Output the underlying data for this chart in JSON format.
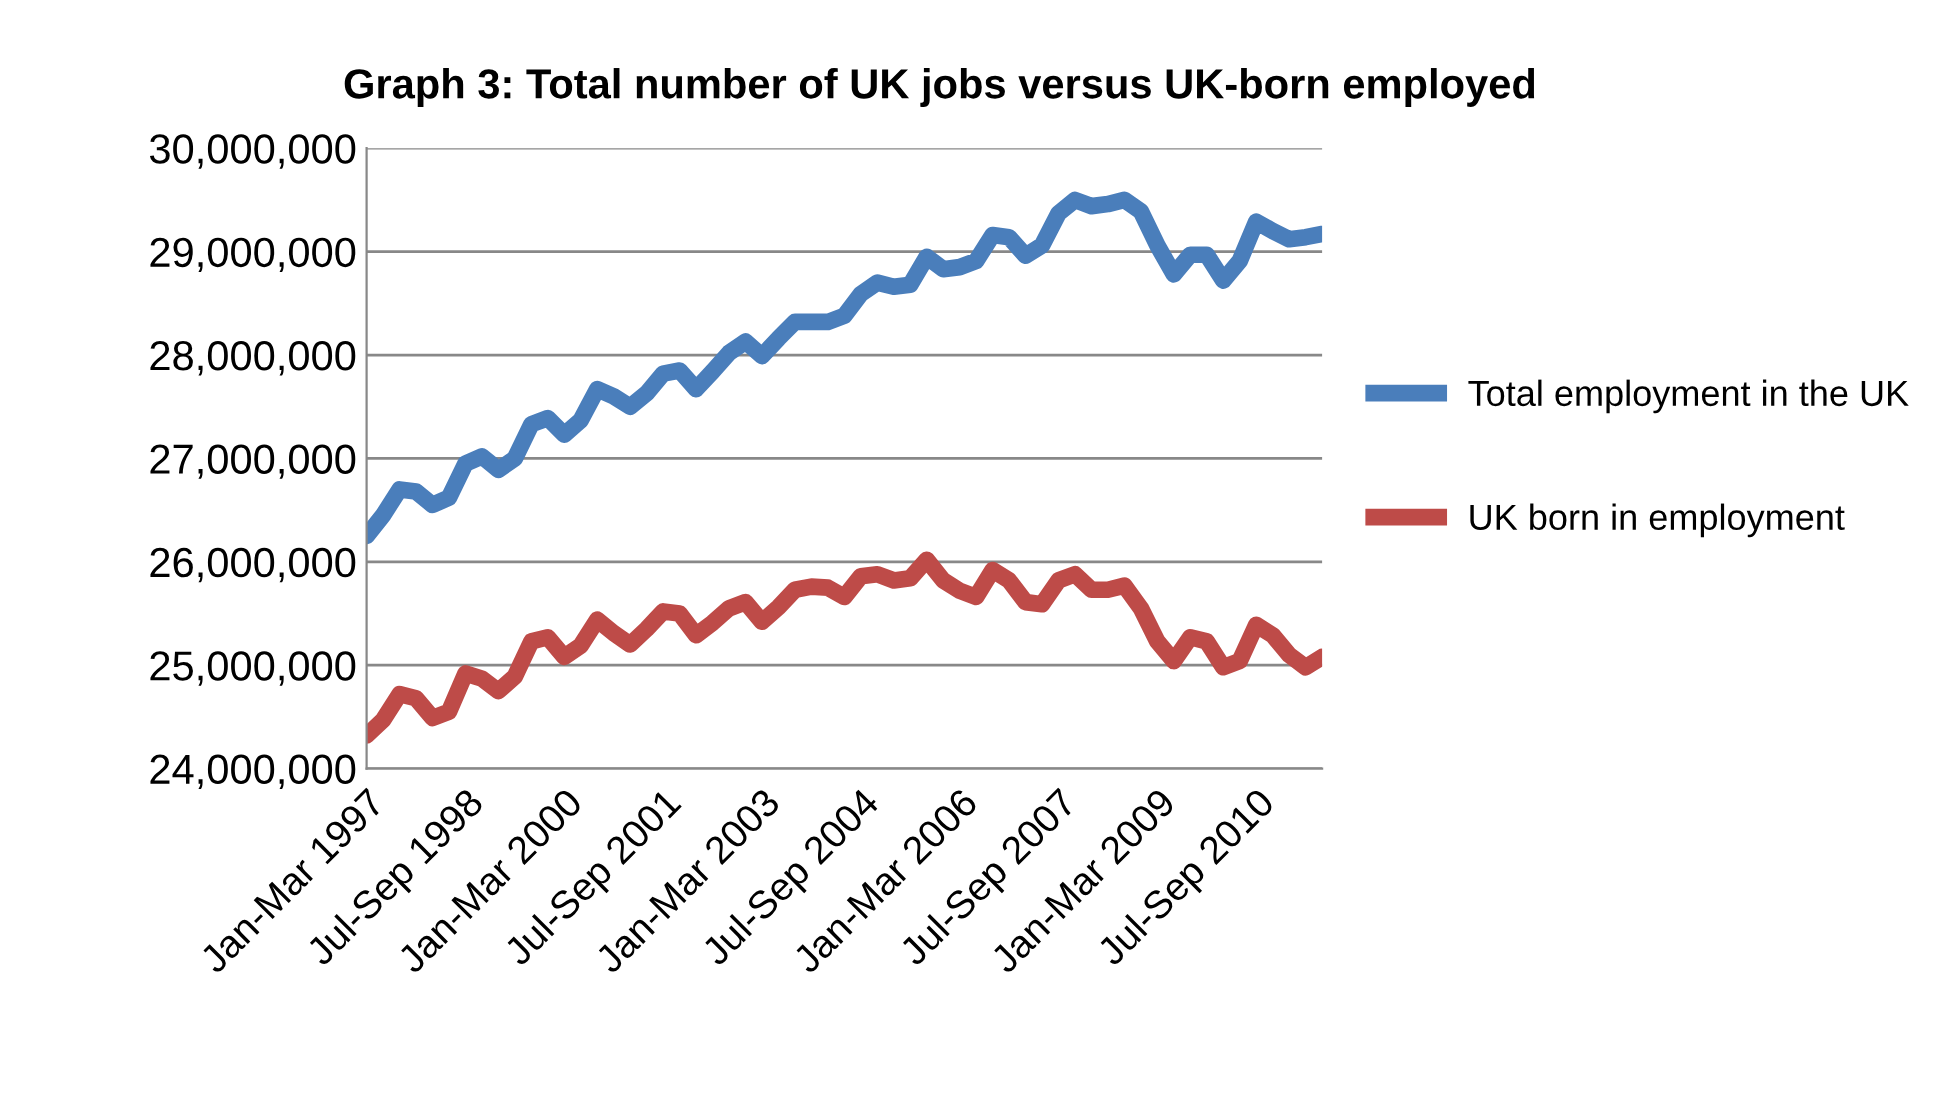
{
  "chart_data": {
    "type": "line",
    "title": "Graph 3: Total number of UK jobs versus UK-born employed",
    "categories": [
      "Jan-Mar 1997",
      null,
      null,
      null,
      null,
      null,
      "Jul-Sep 1998",
      null,
      null,
      null,
      null,
      null,
      "Jan-Mar 2000",
      null,
      null,
      null,
      null,
      null,
      "Jul-Sep 2001",
      null,
      null,
      null,
      null,
      null,
      "Jan-Mar 2003",
      null,
      null,
      null,
      null,
      null,
      "Jul-Sep 2004",
      null,
      null,
      null,
      null,
      null,
      "Jan-Mar 2006",
      null,
      null,
      null,
      null,
      null,
      "Jul-Sep 2007",
      null,
      null,
      null,
      null,
      null,
      "Jan-Mar 2009",
      null,
      null,
      null,
      null,
      null,
      "Jul-Sep 2010",
      null,
      null,
      null,
      null
    ],
    "series": [
      {
        "name": "Total employment in the UK",
        "color": "#4a7ebb",
        "values": [
          26250000,
          26450000,
          26700000,
          26680000,
          26550000,
          26620000,
          26950000,
          27020000,
          26890000,
          27000000,
          27330000,
          27390000,
          27230000,
          27370000,
          27670000,
          27600000,
          27500000,
          27630000,
          27820000,
          27850000,
          27670000,
          27840000,
          28020000,
          28130000,
          27990000,
          28160000,
          28320000,
          28320000,
          28320000,
          28380000,
          28590000,
          28700000,
          28660000,
          28680000,
          28950000,
          28830000,
          28850000,
          28910000,
          29160000,
          29140000,
          28960000,
          29060000,
          29370000,
          29500000,
          29440000,
          29460000,
          29500000,
          29390000,
          29060000,
          28780000,
          28970000,
          28970000,
          28720000,
          28910000,
          29290000,
          29200000,
          29120000,
          29140000,
          29170000
        ]
      },
      {
        "name": "UK born in employment",
        "color": "#be4b48",
        "values": [
          24320000,
          24470000,
          24720000,
          24680000,
          24490000,
          24550000,
          24920000,
          24870000,
          24750000,
          24890000,
          25230000,
          25270000,
          25080000,
          25190000,
          25440000,
          25310000,
          25200000,
          25350000,
          25520000,
          25500000,
          25290000,
          25410000,
          25550000,
          25610000,
          25420000,
          25560000,
          25730000,
          25760000,
          25750000,
          25660000,
          25860000,
          25880000,
          25820000,
          25840000,
          26020000,
          25820000,
          25720000,
          25660000,
          25920000,
          25820000,
          25610000,
          25590000,
          25820000,
          25880000,
          25730000,
          25730000,
          25770000,
          25550000,
          25230000,
          25040000,
          25270000,
          25230000,
          24980000,
          25040000,
          25390000,
          25290000,
          25100000,
          24980000,
          25080000
        ]
      }
    ],
    "ylim": [
      24000000,
      30000000
    ],
    "yticks": [
      {
        "value": 24000000,
        "label": "24,000,000"
      },
      {
        "value": 25000000,
        "label": "25,000,000"
      },
      {
        "value": 26000000,
        "label": "26,000,000"
      },
      {
        "value": 27000000,
        "label": "27,000,000"
      },
      {
        "value": 28000000,
        "label": "28,000,000"
      },
      {
        "value": 29000000,
        "label": "29,000,000"
      },
      {
        "value": 30000000,
        "label": "30,000,000"
      }
    ],
    "grid": "y",
    "legend": "right",
    "marker": "none",
    "line_style": "solid"
  }
}
